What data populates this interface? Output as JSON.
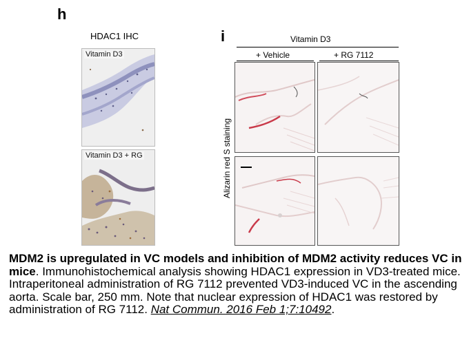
{
  "figure": {
    "panel_h": {
      "letter": "h",
      "title": "HDAC1 IHC",
      "images": [
        {
          "label": "Vitamin D3"
        },
        {
          "label": "Vitamin D3 + RG"
        }
      ]
    },
    "panel_i": {
      "letter": "i",
      "group_label": "Vitamin D3",
      "columns": [
        "+ Vehicle",
        "+ RG 7112"
      ],
      "y_label": "Alizarin red S staining"
    }
  },
  "caption": {
    "bold": "MDM2 is upregulated in VC models and inhibition of MDM2 activity reduces VC in mice",
    "body": ". Immunohistochemical analysis showing HDAC1 expression in VD3-treated mice. Intraperitoneal administration of RG 7112 prevented VD3-induced VC in the ascending aorta. Scale bar, 250 mm. Note that nuclear expression of HDAC1 was restored by administration of RG 7112. ",
    "citation": "Nat Commun. 2016 Feb 1;7:10492",
    "end": "."
  }
}
